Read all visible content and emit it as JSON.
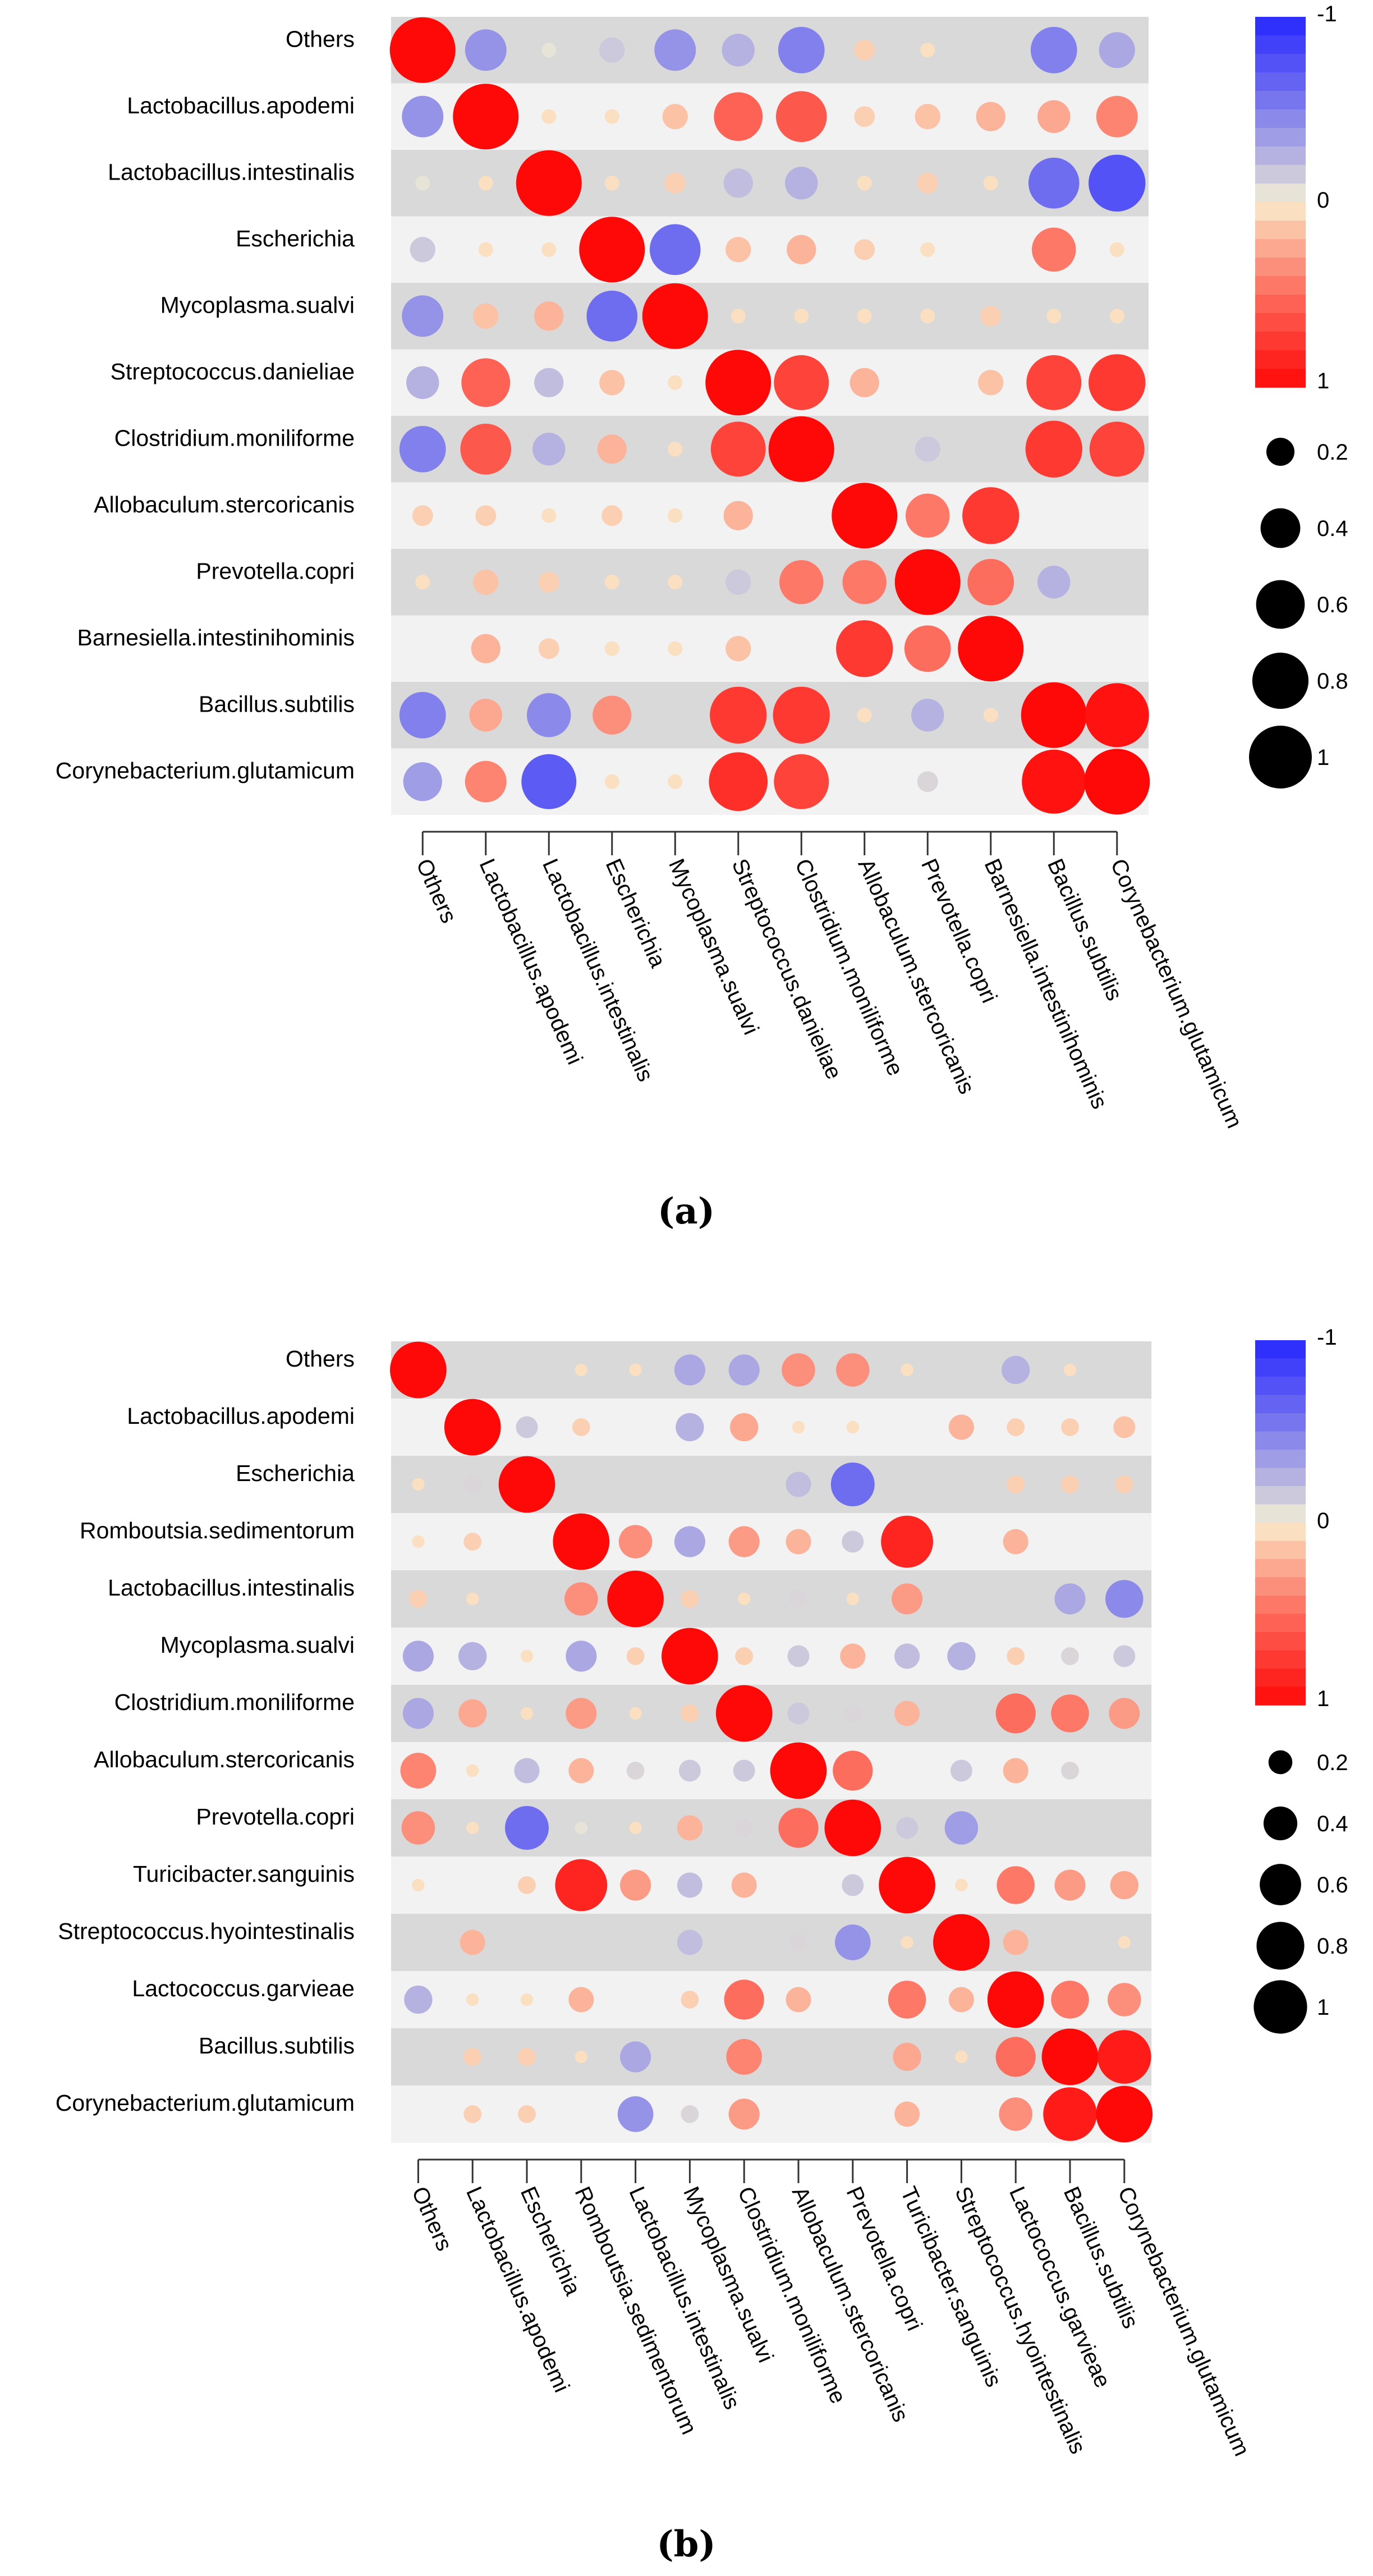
{
  "chart_data": [
    {
      "type": "corrplot",
      "panel_label": "(a)",
      "labels": [
        "Others",
        "Lactobacillus.apodemi",
        "Lactobacillus.intestinalis",
        "Escherichia",
        "Mycoplasma.sualvi",
        "Streptococcus.danieliae",
        "Clostridium.moniliforme",
        "Allobaculum.stercoricanis",
        "Prevotella.copri",
        "Barnesiella.intestinihominis",
        "Bacillus.subtilis",
        "Corynebacterium.glutamicum"
      ],
      "matrix": [
        [
          1,
          -0.4,
          -0.05,
          -0.15,
          -0.4,
          -0.25,
          -0.5,
          0.1,
          0.05,
          0,
          -0.5,
          -0.3
        ],
        [
          -0.4,
          1,
          0.05,
          0.05,
          0.15,
          0.55,
          0.6,
          0.1,
          0.15,
          0.2,
          0.25,
          0.4
        ],
        [
          -0.05,
          0.05,
          1,
          0.05,
          0.1,
          -0.2,
          -0.25,
          0.05,
          0.1,
          0.05,
          -0.6,
          -0.75
        ],
        [
          -0.15,
          0.05,
          0.05,
          1,
          -0.6,
          0.15,
          0.2,
          0.1,
          0.05,
          0,
          0.45,
          0.05
        ],
        [
          -0.4,
          0.15,
          0.2,
          -0.6,
          1,
          0.05,
          0.05,
          0.05,
          0.05,
          0.1,
          0.05,
          0.05
        ],
        [
          -0.25,
          0.55,
          -0.2,
          0.15,
          0.05,
          1,
          0.7,
          0.2,
          0,
          0.15,
          0.7,
          0.75
        ],
        [
          -0.5,
          0.6,
          -0.25,
          0.2,
          0.05,
          0.7,
          1,
          0,
          -0.15,
          0,
          0.75,
          0.7
        ],
        [
          0.1,
          0.1,
          0.05,
          0.1,
          0.05,
          0.2,
          0,
          1,
          0.45,
          0.75,
          0,
          0
        ],
        [
          0.05,
          0.15,
          0.1,
          0.05,
          0.05,
          -0.15,
          0.45,
          0.45,
          1,
          0.5,
          -0.25,
          0
        ],
        [
          0,
          0.2,
          0.1,
          0.05,
          0.05,
          0.15,
          0,
          0.75,
          0.5,
          1,
          0,
          0
        ],
        [
          -0.5,
          0.25,
          -0.45,
          0.35,
          0,
          0.75,
          0.75,
          0.05,
          -0.25,
          0.05,
          1,
          0.95
        ],
        [
          -0.35,
          0.4,
          -0.7,
          0.05,
          0.05,
          0.8,
          0.7,
          0,
          -0.1,
          0,
          0.95,
          1
        ]
      ],
      "color_scale": {
        "min_label": "-1",
        "mid_label": "0",
        "max_label": "1"
      },
      "size_legend": [
        "0.2",
        "0.4",
        "0.6",
        "0.8",
        "1"
      ]
    },
    {
      "type": "corrplot",
      "panel_label": "(b)",
      "labels": [
        "Others",
        "Lactobacillus.apodemi",
        "Escherichia",
        "Romboutsia.sedimentorum",
        "Lactobacillus.intestinalis",
        "Mycoplasma.sualvi",
        "Clostridium.moniliforme",
        "Allobaculum.stercoricanis",
        "Prevotella.copri",
        "Turicibacter.sanguinis",
        "Streptococcus.hyointestinalis",
        "Lactococcus.garvieae",
        "Bacillus.subtilis",
        "Corynebacterium.glutamicum"
      ],
      "matrix": [
        [
          1,
          0,
          0,
          0.05,
          0.05,
          -0.3,
          -0.3,
          0.35,
          0.35,
          0.05,
          0,
          -0.25,
          0.05,
          0
        ],
        [
          0,
          1,
          -0.15,
          0.1,
          0,
          -0.25,
          0.25,
          0.05,
          0.05,
          0,
          0.2,
          0.1,
          0.1,
          0.15
        ],
        [
          0.05,
          -0.1,
          1,
          0,
          0,
          0,
          0,
          -0.2,
          -0.6,
          0,
          0,
          0.1,
          0.1,
          0.1
        ],
        [
          0.05,
          0.1,
          0,
          1,
          0.35,
          -0.3,
          0.3,
          0.2,
          -0.15,
          0.85,
          0,
          0.2,
          0,
          0
        ],
        [
          0.1,
          0.05,
          0,
          0.35,
          1,
          0.1,
          0.05,
          -0.1,
          0.05,
          0.3,
          0,
          0,
          -0.3,
          -0.45
        ],
        [
          -0.3,
          -0.25,
          0.05,
          -0.3,
          0.1,
          1,
          0.1,
          -0.15,
          0.2,
          -0.2,
          -0.25,
          0.1,
          -0.1,
          -0.15
        ],
        [
          -0.3,
          0.25,
          0.05,
          0.3,
          0.05,
          0.1,
          1,
          -0.15,
          -0.1,
          0.2,
          0,
          0.5,
          0.45,
          0.3
        ],
        [
          0.4,
          0.05,
          -0.2,
          0.2,
          -0.1,
          -0.15,
          -0.15,
          1,
          0.5,
          0,
          -0.15,
          0.2,
          -0.1,
          0
        ],
        [
          0.35,
          0.05,
          -0.6,
          -0.05,
          0.05,
          0.2,
          -0.1,
          0.5,
          1,
          -0.15,
          -0.35,
          0,
          0,
          0
        ],
        [
          0.05,
          0,
          0.1,
          0.85,
          0.3,
          -0.2,
          0.2,
          0,
          -0.15,
          1,
          0.05,
          0.45,
          0.3,
          0.25
        ],
        [
          0,
          0.2,
          0,
          0,
          0,
          -0.2,
          0,
          -0.1,
          -0.4,
          0.05,
          1,
          0.2,
          0,
          0.05
        ],
        [
          -0.25,
          0.05,
          0.05,
          0.2,
          0,
          0.1,
          0.5,
          0.2,
          0,
          0.45,
          0.2,
          1,
          0.45,
          0.35
        ],
        [
          0,
          0.1,
          0.1,
          0.05,
          -0.3,
          0,
          0.4,
          0,
          0,
          0.25,
          0.05,
          0.5,
          1,
          0.9
        ],
        [
          0,
          0.1,
          0.1,
          0,
          -0.4,
          -0.1,
          0.3,
          0,
          0,
          0.2,
          0,
          0.35,
          0.9,
          1
        ]
      ],
      "color_scale": {
        "min_label": "-1",
        "mid_label": "0",
        "max_label": "1"
      },
      "size_legend": [
        "0.2",
        "0.4",
        "0.6",
        "0.8",
        "1"
      ]
    }
  ]
}
